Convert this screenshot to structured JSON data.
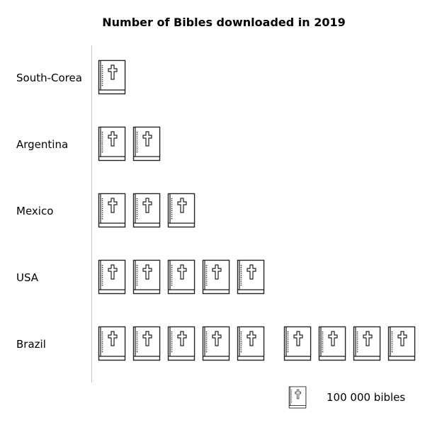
{
  "chart_data": {
    "type": "pictogram",
    "title": "Number of Bibles downloaded in 2019",
    "icon": "bible-icon",
    "unit_value": 100000,
    "categories": [
      "South-Corea",
      "Argentina",
      "Mexico",
      "USA",
      "Brazil"
    ],
    "values": [
      1,
      2,
      3,
      5,
      9
    ],
    "legend": {
      "label": "100 000 bibles"
    },
    "colors": {
      "stroke": "#222222",
      "axis": "#cccccc",
      "background": "#ffffff"
    }
  }
}
